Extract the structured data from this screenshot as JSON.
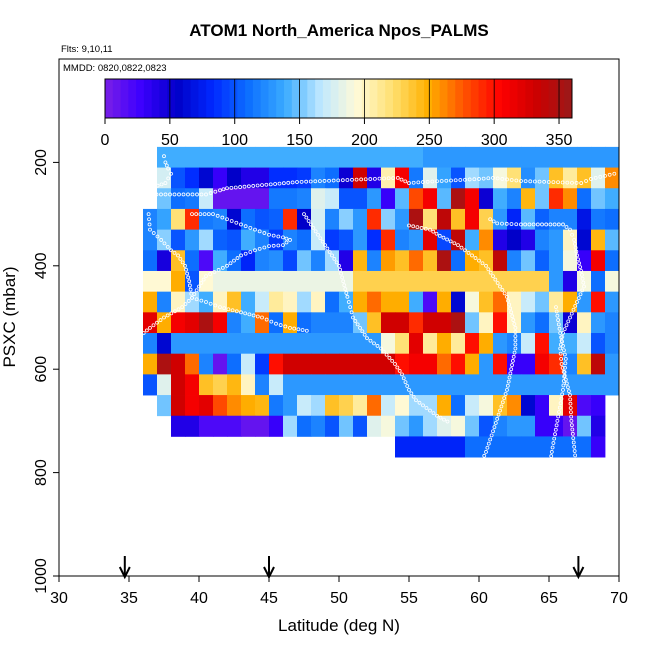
{
  "chart_data": {
    "type": "heatmap",
    "title": "ATOM1 North_America Npos_PALMS",
    "notes": [
      "Flts: 9,10,11",
      "MMDD: 0820,0822,0823"
    ],
    "xlabel": "Latitude (deg N)",
    "ylabel": "PSXC (mbar)",
    "xlim": [
      30,
      70
    ],
    "ylim": [
      1000,
      0
    ],
    "xticks": [
      "30",
      "35",
      "40",
      "45",
      "50",
      "55",
      "60",
      "65",
      "70"
    ],
    "yticks": [
      "200",
      "400",
      "600",
      "800",
      "1000"
    ],
    "colorbar": {
      "range": [
        0,
        360
      ],
      "ticks": [
        "0",
        "50",
        "100",
        "150",
        "200",
        "250",
        "300",
        "350"
      ],
      "palette": [
        "#7a1fe6",
        "#3c00ff",
        "#0000c8",
        "#0028ff",
        "#0d70ff",
        "#39aaff",
        "#bfe8ff",
        "#fffad8",
        "#ffe070",
        "#ffb000",
        "#ff5200",
        "#ff0000",
        "#cc0000",
        "#9a1a1a"
      ]
    },
    "arrows_latitude": [
      34.7,
      45,
      67.1
    ],
    "grid": {
      "lat_start": 35,
      "lat_step": 1,
      "p_start": 170,
      "p_step": 40,
      "values": [
        [
          null,
          null,
          140,
          140,
          140,
          140,
          140,
          140,
          140,
          140,
          140,
          140,
          140,
          140,
          140,
          140,
          140,
          140,
          140,
          140,
          140,
          130,
          130,
          130,
          130,
          130,
          130,
          130,
          130,
          130,
          130,
          130,
          130,
          130,
          130
        ],
        [
          null,
          null,
          175,
          100,
          85,
          60,
          30,
          55,
          40,
          40,
          85,
          85,
          90,
          120,
          110,
          50,
          330,
          40,
          205,
          310,
          115,
          180,
          135,
          100,
          160,
          150,
          190,
          220,
          125,
          150,
          240,
          210,
          240,
          180,
          260
        ],
        [
          null,
          null,
          150,
          110,
          115,
          170,
          10,
          10,
          10,
          10,
          115,
          115,
          120,
          180,
          170,
          100,
          100,
          130,
          30,
          145,
          280,
          310,
          145,
          350,
          310,
          50,
          140,
          120,
          245,
          150,
          290,
          260,
          110,
          150,
          140
        ],
        [
          null,
          120,
          135,
          220,
          290,
          115,
          120,
          60,
          110,
          100,
          105,
          290,
          55,
          175,
          120,
          155,
          130,
          290,
          155,
          130,
          350,
          220,
          340,
          240,
          310,
          230,
          130,
          80,
          145,
          105,
          120,
          120,
          70,
          115,
          110
        ],
        [
          null,
          120,
          155,
          100,
          130,
          160,
          105,
          100,
          140,
          120,
          90,
          120,
          110,
          170,
          90,
          100,
          130,
          85,
          290,
          120,
          130,
          320,
          95,
          340,
          140,
          260,
          40,
          55,
          40,
          120,
          130,
          200,
          60,
          245,
          145
        ],
        [
          null,
          110,
          45,
          240,
          110,
          20,
          140,
          110,
          80,
          120,
          125,
          95,
          150,
          120,
          160,
          40,
          245,
          120,
          255,
          240,
          270,
          240,
          350,
          110,
          250,
          240,
          340,
          120,
          150,
          105,
          130,
          190,
          30,
          310,
          110
        ],
        [
          null,
          195,
          195,
          250,
          100,
          195,
          185,
          185,
          185,
          185,
          185,
          185,
          185,
          185,
          185,
          185,
          230,
          230,
          230,
          230,
          230,
          230,
          230,
          230,
          230,
          230,
          230,
          230,
          230,
          230,
          130,
          40,
          190,
          110,
          190
        ],
        [
          null,
          250,
          120,
          200,
          160,
          140,
          200,
          240,
          140,
          170,
          210,
          200,
          160,
          200,
          110,
          140,
          250,
          270,
          250,
          250,
          140,
          20,
          250,
          60,
          190,
          240,
          270,
          200,
          170,
          150,
          210,
          250,
          130,
          300,
          130
        ],
        [
          null,
          320,
          250,
          310,
          320,
          350,
          310,
          120,
          140,
          270,
          110,
          250,
          110,
          120,
          120,
          120,
          150,
          240,
          330,
          330,
          290,
          330,
          330,
          350,
          150,
          200,
          300,
          200,
          130,
          110,
          150,
          50,
          200,
          130,
          120
        ],
        [
          null,
          120,
          60,
          130,
          130,
          130,
          130,
          130,
          130,
          130,
          130,
          130,
          130,
          130,
          130,
          130,
          130,
          130,
          190,
          220,
          320,
          210,
          250,
          210,
          300,
          250,
          130,
          120,
          170,
          300,
          140,
          140,
          170,
          100,
          120
        ],
        [
          null,
          250,
          350,
          330,
          270,
          120,
          10,
          110,
          170,
          90,
          300,
          330,
          330,
          330,
          330,
          330,
          330,
          330,
          330,
          300,
          310,
          310,
          270,
          300,
          250,
          130,
          300,
          30,
          30,
          310,
          290,
          120,
          240,
          340,
          130
        ],
        [
          null,
          100,
          180,
          330,
          310,
          240,
          230,
          245,
          200,
          120,
          170,
          130,
          130,
          130,
          130,
          130,
          130,
          130,
          130,
          130,
          130,
          130,
          130,
          130,
          130,
          130,
          130,
          130,
          130,
          130,
          130,
          130,
          130,
          130,
          130
        ],
        [
          null,
          null,
          150,
          330,
          310,
          320,
          280,
          260,
          250,
          245,
          115,
          130,
          170,
          160,
          240,
          230,
          210,
          270,
          170,
          195,
          160,
          160,
          250,
          110,
          170,
          190,
          240,
          260,
          60,
          30,
          200,
          320,
          20,
          30,
          null
        ],
        [
          null,
          null,
          null,
          40,
          40,
          20,
          20,
          20,
          10,
          10,
          30,
          160,
          110,
          120,
          100,
          150,
          100,
          180,
          190,
          150,
          130,
          160,
          180,
          190,
          150,
          100,
          120,
          130,
          130,
          30,
          30,
          10,
          150,
          40,
          null
        ],
        [
          null,
          null,
          null,
          null,
          null,
          null,
          null,
          null,
          null,
          null,
          null,
          null,
          null,
          null,
          null,
          null,
          null,
          null,
          null,
          80,
          80,
          80,
          80,
          80,
          110,
          110,
          110,
          110,
          110,
          110,
          110,
          110,
          110,
          30,
          null
        ],
        [
          null,
          null,
          null,
          null,
          null,
          null,
          null,
          null,
          null,
          null,
          null,
          null,
          null,
          null,
          null,
          null,
          null,
          null,
          null,
          null,
          null,
          null,
          null,
          null,
          null,
          null,
          null,
          null,
          null,
          null,
          null,
          null,
          null,
          null,
          null
        ]
      ]
    },
    "point_segments": [
      [
        [
          37.5,
          188
        ],
        [
          37.6,
          200
        ],
        [
          37.8,
          212
        ],
        [
          38.0,
          222
        ],
        [
          37.6,
          240
        ],
        [
          36.5,
          250
        ],
        [
          36.0,
          262
        ],
        [
          40.5,
          262
        ],
        [
          41.5,
          254
        ],
        [
          42.0,
          250
        ],
        [
          47.0,
          238
        ],
        [
          54.2,
          230
        ],
        [
          55.0,
          240
        ],
        [
          56.0,
          238
        ],
        [
          58.0,
          235
        ],
        [
          60.0,
          232
        ],
        [
          61.0,
          230
        ],
        [
          63.0,
          236
        ],
        [
          67.3,
          240
        ],
        [
          68.0,
          232
        ],
        [
          69.0,
          226
        ],
        [
          70.0,
          220
        ]
      ],
      [
        [
          36.4,
          300
        ],
        [
          36.5,
          330
        ],
        [
          37.3,
          350
        ],
        [
          38.0,
          370
        ],
        [
          38.5,
          380
        ],
        [
          39.0,
          400
        ],
        [
          39.3,
          430
        ],
        [
          39.5,
          462
        ],
        [
          38.8,
          480
        ],
        [
          37.5,
          500
        ],
        [
          36.5,
          520
        ],
        [
          35.6,
          540
        ],
        [
          35.2,
          570
        ],
        [
          35.0,
          600
        ],
        [
          34.7,
          620
        ],
        [
          34.5,
          640
        ],
        [
          34.6,
          660
        ],
        [
          35.2,
          690
        ],
        [
          35.8,
          720
        ],
        [
          36.6,
          740
        ],
        [
          37.3,
          760
        ],
        [
          37.7,
          790
        ],
        [
          38.0,
          810
        ],
        [
          38.3,
          830
        ]
      ],
      [
        [
          39.5,
          300
        ],
        [
          41.0,
          300
        ],
        [
          42.0,
          310
        ],
        [
          43.0,
          320
        ],
        [
          44.0,
          330
        ],
        [
          45.0,
          340
        ],
        [
          46.0,
          345
        ],
        [
          46.5,
          350
        ],
        [
          46.0,
          360
        ],
        [
          45.0,
          362
        ],
        [
          44.0,
          370
        ],
        [
          43.0,
          380
        ],
        [
          42.0,
          400
        ],
        [
          40.5,
          420
        ],
        [
          40.0,
          440
        ],
        [
          39.5,
          462
        ],
        [
          40.5,
          470
        ],
        [
          41.5,
          480
        ],
        [
          43.0,
          490
        ],
        [
          44.5,
          500
        ],
        [
          45.5,
          512
        ],
        [
          46.5,
          520
        ],
        [
          48.0,
          527
        ]
      ],
      [
        [
          47.5,
          300
        ],
        [
          48.0,
          320
        ],
        [
          48.5,
          340
        ],
        [
          49.0,
          360
        ],
        [
          49.5,
          380
        ],
        [
          50.0,
          400
        ],
        [
          50.3,
          430
        ],
        [
          50.6,
          460
        ],
        [
          50.8,
          480
        ],
        [
          51.0,
          500
        ],
        [
          51.5,
          520
        ],
        [
          52.0,
          540
        ],
        [
          53.0,
          560
        ],
        [
          54.0,
          590
        ],
        [
          54.5,
          610
        ],
        [
          55.0,
          640
        ],
        [
          55.5,
          660
        ],
        [
          56.5,
          680
        ],
        [
          57.0,
          690
        ],
        [
          58.0,
          705
        ]
      ],
      [
        [
          55.0,
          322
        ],
        [
          56.5,
          330
        ],
        [
          57.2,
          342
        ],
        [
          58.5,
          360
        ],
        [
          59.5,
          380
        ],
        [
          60.5,
          400
        ],
        [
          61.0,
          420
        ],
        [
          61.5,
          440
        ],
        [
          62.0,
          460
        ],
        [
          62.3,
          490
        ],
        [
          62.6,
          520
        ],
        [
          62.6,
          560
        ],
        [
          62.3,
          600
        ],
        [
          62.0,
          640
        ],
        [
          61.5,
          680
        ],
        [
          61.0,
          720
        ],
        [
          60.5,
          760
        ],
        [
          60.0,
          790
        ],
        [
          59.5,
          810
        ]
      ],
      [
        [
          60.8,
          310
        ],
        [
          61.3,
          318
        ],
        [
          63.0,
          320
        ],
        [
          64.5,
          320
        ],
        [
          66.0,
          320
        ],
        [
          66.5,
          330
        ],
        [
          66.8,
          350
        ],
        [
          67.0,
          380
        ],
        [
          67.3,
          410
        ],
        [
          67.5,
          440
        ],
        [
          67.0,
          470
        ],
        [
          66.5,
          500
        ],
        [
          66.0,
          530
        ],
        [
          65.8,
          560
        ],
        [
          65.9,
          590
        ],
        [
          66.2,
          620
        ],
        [
          66.5,
          650
        ],
        [
          66.6,
          700
        ],
        [
          66.8,
          750
        ],
        [
          67.0,
          800
        ]
      ],
      [
        [
          65.5,
          480
        ],
        [
          65.8,
          530
        ],
        [
          66.2,
          580
        ],
        [
          66.0,
          640
        ],
        [
          65.6,
          700
        ],
        [
          65.2,
          760
        ],
        [
          65.0,
          800
        ],
        [
          64.8,
          860
        ],
        [
          64.6,
          900
        ],
        [
          64.6,
          940
        ],
        [
          64.8,
          950
        ]
      ]
    ]
  }
}
